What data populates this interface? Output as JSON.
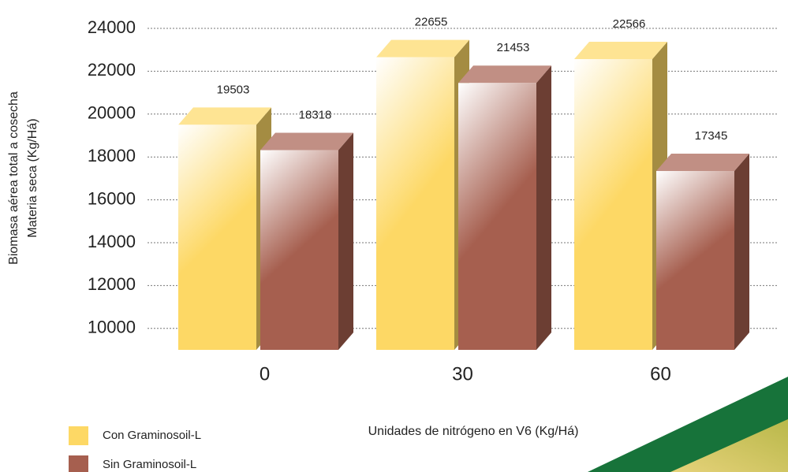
{
  "chart_data": {
    "type": "bar3d",
    "x_label": "Unidades de nitrógeno en V6 (Kg/Há)",
    "y_label": [
      "Biomasa aérea total a cosecha",
      "Materia seca (Kg/Há)"
    ],
    "categories": [
      "0",
      "30",
      "60"
    ],
    "series": [
      {
        "name": "Con Graminosoil-L",
        "color": "#fdd865",
        "values": [
          19503,
          22655,
          22566
        ]
      },
      {
        "name": "Sin Graminosoil-L",
        "color": "#a65f4f",
        "values": [
          18318,
          21453,
          17345
        ]
      }
    ],
    "ylim": [
      9000,
      24000
    ],
    "yticks": [
      10000,
      12000,
      14000,
      16000,
      18000,
      20000,
      22000,
      24000
    ],
    "grid": true,
    "legend": "bottom-left"
  }
}
